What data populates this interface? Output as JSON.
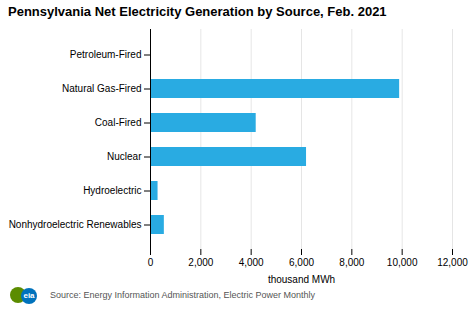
{
  "chart_data": {
    "type": "bar",
    "orientation": "horizontal",
    "title": "Pennsylvania Net Electricity Generation by Source, Feb. 2021",
    "categories": [
      "Nonhydroelectric Renewables",
      "Hydroelectric",
      "Nuclear",
      "Coal-Fired",
      "Natural Gas-Fired",
      "Petroleum-Fired"
    ],
    "values": [
      550,
      300,
      6200,
      4200,
      9900,
      10
    ],
    "color": "#29ABE2",
    "xlabel": "thousand MWh",
    "xlim": [
      0,
      12000
    ],
    "xticks": [
      0,
      {
        "value": 2000,
        "label": "2,000"
      },
      {
        "value": 4000,
        "label": "4,000"
      },
      {
        "value": 6000,
        "label": "6,000"
      },
      {
        "value": 8000,
        "label": "8,000"
      },
      {
        "value": 10000,
        "label": "10,000"
      },
      {
        "value": 12000,
        "label": "12,000"
      }
    ],
    "grid": true,
    "source": "Source: Energy Information Administration, Electric Power Monthly",
    "logo_text": "eia"
  }
}
